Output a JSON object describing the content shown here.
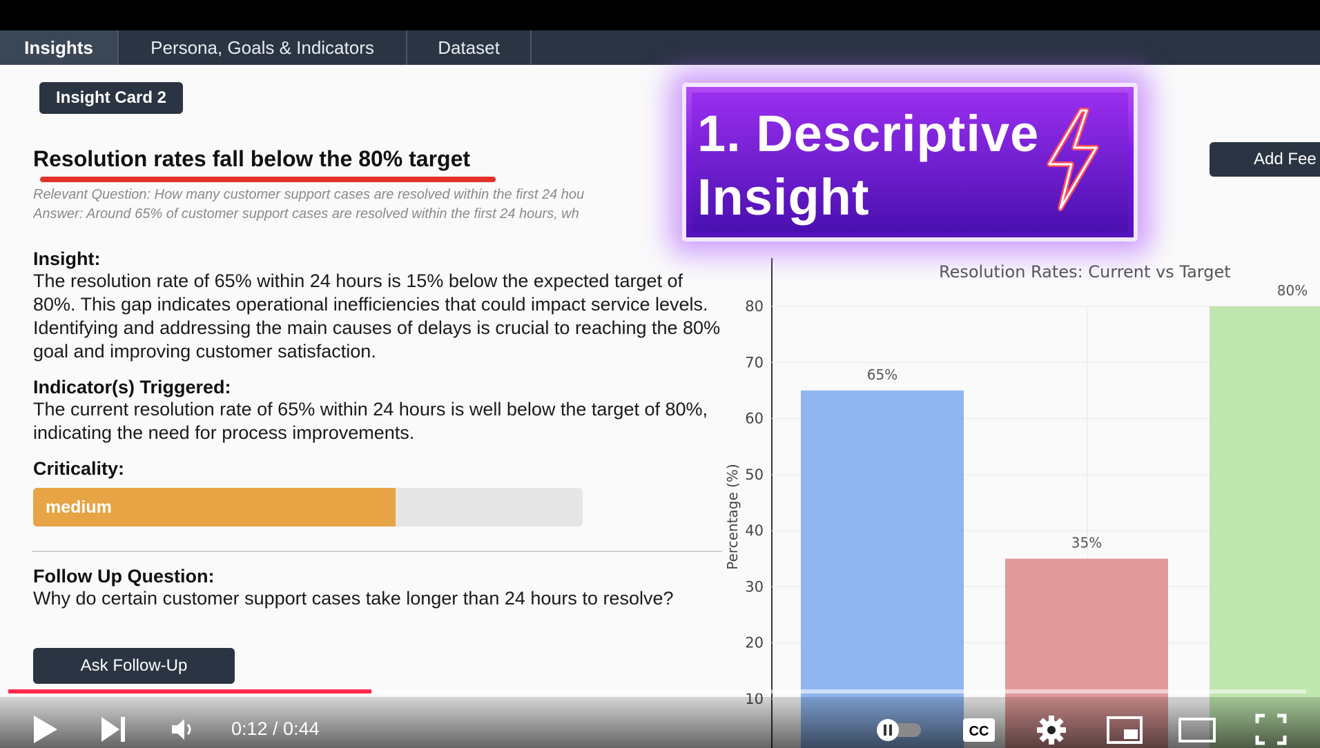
{
  "tabs": [
    {
      "label": "Insights"
    },
    {
      "label": "Persona, Goals & Indicators"
    },
    {
      "label": "Dataset"
    }
  ],
  "card": {
    "badge": "Insight Card 2",
    "title": "Resolution rates fall below the 80% target",
    "relevant_question": "Relevant Question: How many customer support cases are resolved within the first 24 hou",
    "answer": "Answer: Around 65% of customer support cases are resolved within the first 24 hours, wh",
    "insight_heading": "Insight:",
    "insight_text": "The resolution rate of 65% within 24 hours is 15% below the expected target of 80%. This gap indicates operational inefficiencies that could impact service levels. Identifying and addressing the main causes of delays is crucial to reaching the 80% goal and improving customer satisfaction.",
    "indicators_heading": "Indicator(s) Triggered:",
    "indicators_text": "The current resolution rate of 65% within 24 hours is well below the target of 80%, indicating the need for process improvements.",
    "criticality_heading": "Criticality:",
    "criticality_label": "medium",
    "criticality_level": 0.66,
    "criticality_color": "#e7a445",
    "followup_heading": "Follow Up Question:",
    "followup_text": "Why do certain customer support cases take longer than 24 hours to resolve?",
    "ask_button": "Ask Follow-Up",
    "feedback_button": "Add Fee"
  },
  "overlay": {
    "line1": "1. Descriptive",
    "line2": "Insight"
  },
  "chart_data": {
    "type": "bar",
    "title": "Resolution Rates: Current vs Target",
    "ylabel": "Percentage (%)",
    "ylim": [
      0,
      80
    ],
    "yticks": [
      10,
      20,
      30,
      40,
      50,
      60,
      70,
      80
    ],
    "values": [
      65,
      35,
      80
    ],
    "value_labels": [
      "65%",
      "35%",
      "80%"
    ],
    "colors": [
      "#8fb6ee",
      "#e09a9a",
      "#bfe6ae"
    ]
  },
  "player": {
    "time": "0:12 / 0:44",
    "progress": 0.28,
    "colors": {
      "progress": "#ff2a4a"
    }
  }
}
